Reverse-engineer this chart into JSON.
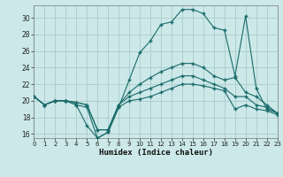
{
  "xlabel": "Humidex (Indice chaleur)",
  "background_color": "#cce8e8",
  "grid_color": "#aacccc",
  "line_color": "#1a6b6b",
  "xlim": [
    0,
    23
  ],
  "ylim": [
    15.5,
    31.5
  ],
  "xticks": [
    0,
    1,
    2,
    3,
    4,
    5,
    6,
    7,
    8,
    9,
    10,
    11,
    12,
    13,
    14,
    15,
    16,
    17,
    18,
    19,
    20,
    21,
    22,
    23
  ],
  "yticks": [
    16,
    18,
    20,
    22,
    24,
    26,
    28,
    30
  ],
  "line1": [
    20.5,
    19.5,
    20.0,
    20.0,
    19.5,
    19.2,
    15.5,
    16.2,
    19.2,
    20.0,
    20.2,
    20.5,
    21.0,
    21.5,
    22.0,
    22.0,
    21.8,
    21.5,
    21.2,
    19.0,
    19.5,
    19.0,
    18.8,
    18.3
  ],
  "line2": [
    20.5,
    19.5,
    20.0,
    20.0,
    19.8,
    19.5,
    16.5,
    16.5,
    19.5,
    20.5,
    21.0,
    21.5,
    22.0,
    22.5,
    23.0,
    23.0,
    22.5,
    22.0,
    21.5,
    20.5,
    20.5,
    19.5,
    19.2,
    18.5
  ],
  "line3": [
    20.5,
    19.5,
    20.0,
    20.0,
    19.8,
    19.5,
    16.5,
    16.5,
    19.5,
    21.0,
    22.0,
    22.8,
    23.5,
    24.0,
    24.5,
    24.5,
    24.0,
    23.0,
    22.5,
    22.8,
    21.0,
    20.5,
    19.5,
    18.5
  ],
  "line4": [
    20.5,
    19.5,
    20.0,
    20.0,
    19.5,
    17.0,
    15.5,
    16.2,
    19.2,
    22.5,
    25.8,
    27.2,
    29.2,
    29.5,
    31.0,
    31.0,
    30.5,
    28.8,
    28.5,
    23.0,
    30.2,
    21.5,
    19.0,
    18.5
  ]
}
